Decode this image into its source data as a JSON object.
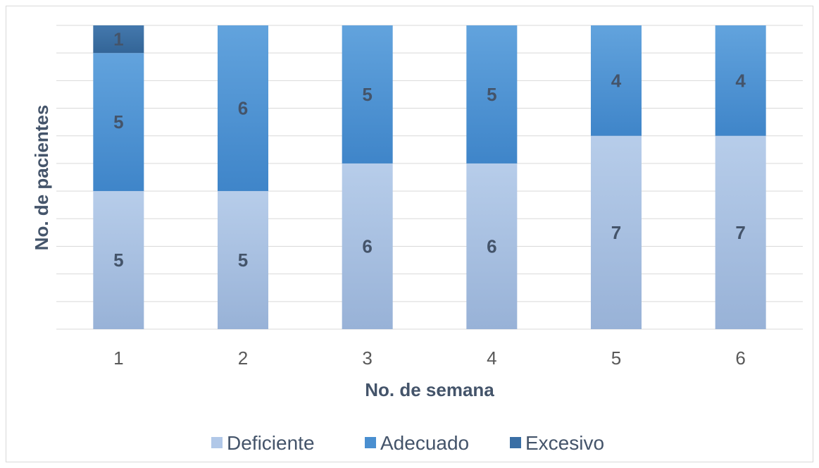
{
  "chart_data": {
    "type": "bar",
    "stacked": true,
    "categories": [
      "1",
      "2",
      "3",
      "4",
      "5",
      "6"
    ],
    "series": [
      {
        "name": "Deficiente",
        "values": [
          5,
          5,
          6,
          6,
          7,
          7
        ],
        "color": "#a9c0e3"
      },
      {
        "name": "Adecuado",
        "values": [
          5,
          6,
          5,
          5,
          4,
          4
        ],
        "color": "#4a8fd0"
      },
      {
        "name": "Excesivo",
        "values": [
          1,
          0,
          0,
          0,
          0,
          0
        ],
        "color": "#3a6fa5"
      }
    ],
    "xlabel": "No. de semana",
    "ylabel": "No. de pacientes",
    "ylim": [
      0,
      11
    ],
    "grid": true,
    "y_tick_labels_shown": false,
    "legend_position": "bottom"
  }
}
